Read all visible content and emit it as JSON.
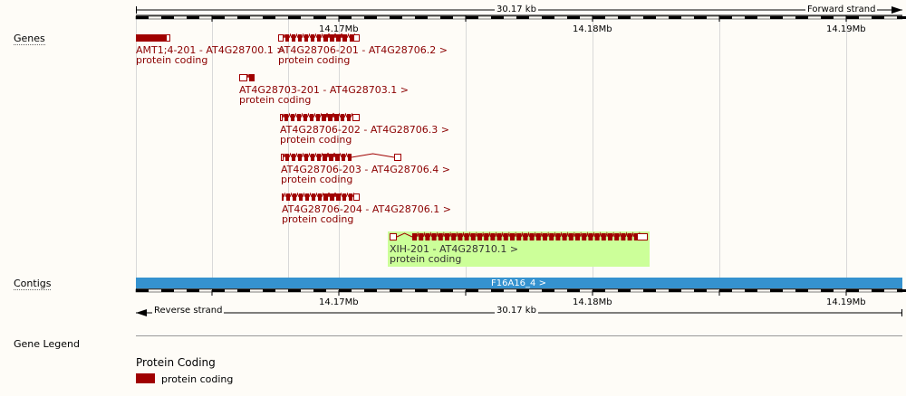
{
  "scale": {
    "length_label": "30.17 kb",
    "forward_strand": "Forward strand",
    "reverse_strand": "Reverse strand",
    "ticks": [
      "14.17Mb",
      "14.18Mb",
      "14.19Mb"
    ]
  },
  "tracks": {
    "genes_label": "Genes",
    "contigs_label": "Contigs",
    "legend_label": "Gene Legend"
  },
  "genes": [
    {
      "name": "AMT1;4-201 - AT4G28700.1 >",
      "biotype": "protein coding"
    },
    {
      "name": "AT4G28706-201 - AT4G28706.2 >",
      "biotype": "protein coding"
    },
    {
      "name": "AT4G28703-201 - AT4G28703.1 >",
      "biotype": "protein coding"
    },
    {
      "name": "AT4G28706-202 - AT4G28706.3 >",
      "biotype": "protein coding"
    },
    {
      "name": "AT4G28706-203 - AT4G28706.4 >",
      "biotype": "protein coding"
    },
    {
      "name": "AT4G28706-204 - AT4G28706.1 >",
      "biotype": "protein coding"
    },
    {
      "name": "XIH-201 - AT4G28710.1 >",
      "biotype": "protein coding"
    }
  ],
  "contig": {
    "name": "F16A16_4 >"
  },
  "legend": {
    "title": "Protein Coding",
    "item_label": "protein coding"
  },
  "colors": {
    "gene": "#a00000",
    "highlight": "#ccff99",
    "contig": "#3592cf",
    "grid": "#d9d9d9"
  }
}
